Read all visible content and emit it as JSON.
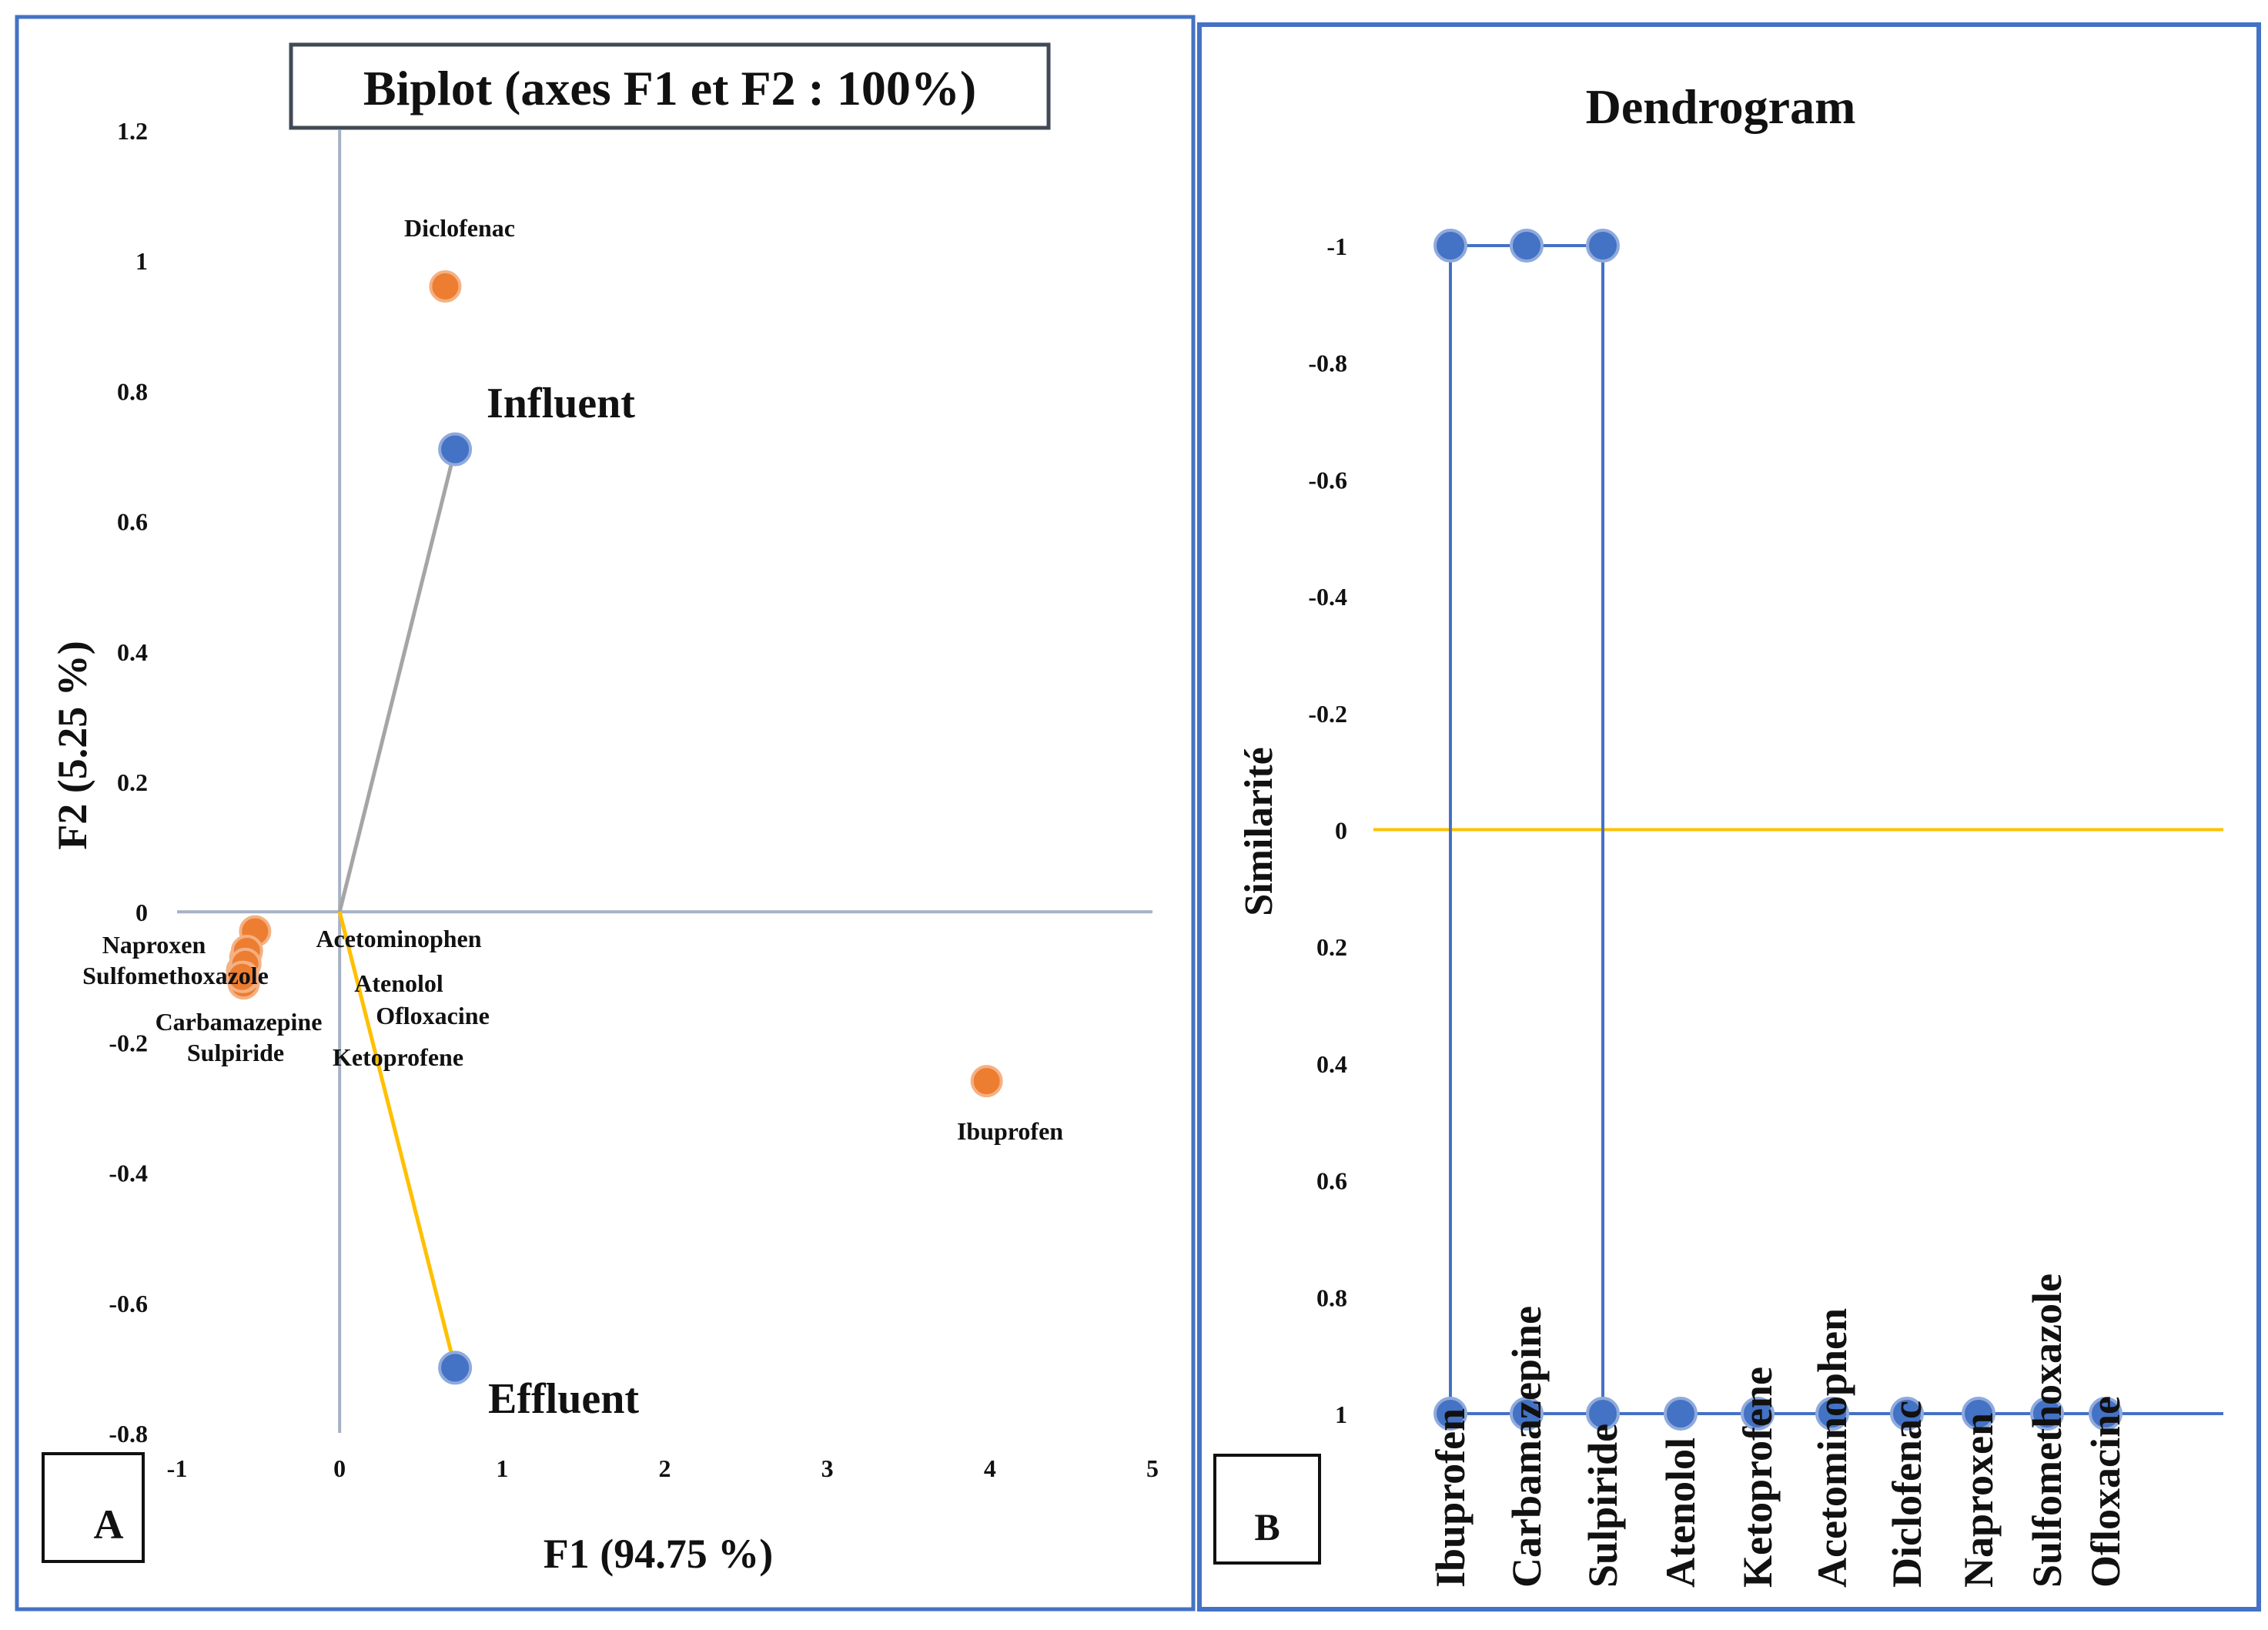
{
  "colors": {
    "frame": "#4472C4",
    "orange": "#ED7D31",
    "blue": "#4472C4",
    "axis_gray": "#A6B2C4",
    "vector_gray": "#A5A5A5",
    "yellow": "#FFC000",
    "title_border": "#404A56"
  },
  "panel_labels": {
    "a": "A",
    "b": "B"
  },
  "chart_data": [
    {
      "type": "scatter",
      "title": "Biplot (axes F1 et F2 : 100%)",
      "xlabel": "F1 (94.75 %)",
      "ylabel": "F2 (5.25 %)",
      "xlim": [
        -1,
        5
      ],
      "ylim": [
        -0.8,
        1.2
      ],
      "xticks": [
        -1,
        0,
        1,
        2,
        3,
        4,
        5
      ],
      "yticks": [
        -0.8,
        -0.6,
        -0.4,
        -0.2,
        0,
        0.2,
        0.4,
        0.6,
        0.8,
        1,
        1.2
      ],
      "observations": [
        {
          "name": "Diclofenac",
          "x": 0.65,
          "y": 0.96
        },
        {
          "name": "Ibuprofen",
          "x": 3.98,
          "y": -0.26
        },
        {
          "name": "Naproxen",
          "x": -0.52,
          "y": -0.03
        },
        {
          "name": "Sulfomethoxazole",
          "x": -0.58,
          "y": -0.07
        },
        {
          "name": "Carbamazepine",
          "x": -0.6,
          "y": -0.09
        },
        {
          "name": "Sulpiride",
          "x": -0.59,
          "y": -0.11
        },
        {
          "name": "Acetominophen",
          "x": -0.57,
          "y": -0.06
        },
        {
          "name": "Atenolol",
          "x": -0.58,
          "y": -0.08
        },
        {
          "name": "Ofloxacine",
          "x": -0.59,
          "y": -0.1
        },
        {
          "name": "Ketoprofene",
          "x": -0.6,
          "y": -0.1
        }
      ],
      "variables": [
        {
          "name": "Influent",
          "x": 0.71,
          "y": 0.71
        },
        {
          "name": "Effluent",
          "x": 0.71,
          "y": -0.7
        }
      ]
    },
    {
      "type": "dendrogram",
      "title": "Dendrogram",
      "ylabel": "Similarité",
      "ylim": [
        1,
        -1
      ],
      "yticks": [
        "-1",
        "-0.8",
        "-0.6",
        "-0.4",
        "-0.2",
        "0",
        "0.2",
        "0.4",
        "0.6",
        "0.8",
        "1"
      ],
      "leaves": [
        "Ibuprofen",
        "Carbamazepine",
        "Sulpiride",
        "Atenolol",
        "Ketoprofene",
        "Acetominophen",
        "Diclofenac",
        "Naproxen",
        "Sulfomethoxazole",
        "Ofloxacine"
      ],
      "leaf_similarity": 1,
      "top_node_similarity": -1,
      "cut_level": 0
    }
  ]
}
